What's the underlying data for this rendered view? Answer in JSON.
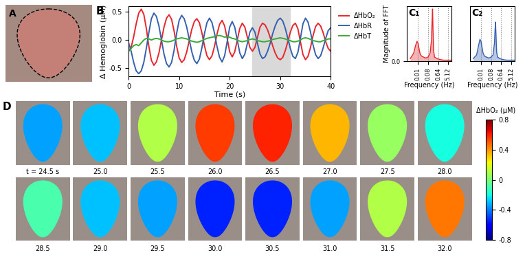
{
  "chart_data": [
    {
      "type": "image",
      "panel": "A"
    },
    {
      "type": "line",
      "panel": "B",
      "x": [
        0,
        0.5,
        1,
        1.5,
        2,
        2.5,
        3,
        3.5,
        4,
        4.5,
        5,
        5.5,
        6,
        6.5,
        7,
        7.5,
        8,
        8.5,
        9,
        9.5,
        10,
        10.5,
        11,
        11.5,
        12,
        12.5,
        13,
        13.5,
        14,
        14.5,
        15,
        15.5,
        16,
        16.5,
        17,
        17.5,
        18,
        18.5,
        19,
        19.5,
        20,
        20.5,
        21,
        21.5,
        22,
        22.5,
        23,
        23.5,
        24,
        24.5,
        25,
        25.5,
        26,
        26.5,
        27,
        27.5,
        28,
        28.5,
        29,
        29.5,
        30,
        30.5,
        31,
        31.5,
        32,
        32.5,
        33,
        33.5,
        34,
        34.5,
        35,
        35.5,
        36,
        36.5,
        37,
        37.5,
        38,
        38.5,
        39,
        39.5,
        40
      ],
      "xlim": [
        0,
        40
      ],
      "xticks": [
        0,
        10,
        20,
        30,
        40
      ],
      "ylim": [
        -0.65,
        0.6
      ],
      "yticks": [
        -0.5,
        0.0,
        0.5
      ],
      "x_label": "Time (s)",
      "y_label": "Δ Hemoglobin (μM)",
      "legend": "upper left",
      "shaded_range": [
        24.5,
        32
      ],
      "series": [
        {
          "name": "ΔHbO₂",
          "color": "#e8262b",
          "values": [
            -0.2,
            -0.13,
            0.06,
            0.29,
            0.48,
            0.55,
            0.46,
            0.21,
            -0.11,
            -0.36,
            -0.45,
            -0.39,
            -0.23,
            0.0,
            0.23,
            0.39,
            0.45,
            0.37,
            0.16,
            -0.11,
            -0.32,
            -0.4,
            -0.35,
            -0.21,
            -0.01,
            0.19,
            0.33,
            0.38,
            0.31,
            0.13,
            -0.1,
            -0.28,
            -0.35,
            -0.28,
            -0.11,
            0.11,
            0.28,
            0.35,
            0.25,
            0.03,
            -0.21,
            -0.3,
            -0.21,
            0.0,
            0.21,
            0.3,
            0.23,
            0.05,
            -0.13,
            -0.2,
            -0.13,
            0.05,
            0.23,
            0.3,
            0.27,
            0.18,
            0.05,
            -0.1,
            -0.23,
            -0.32,
            -0.35,
            -0.31,
            -0.19,
            -0.03,
            0.14,
            0.26,
            0.3,
            0.2,
            -0.03,
            -0.26,
            -0.35,
            -0.29,
            -0.13,
            0.08,
            0.24,
            0.3,
            0.25,
            0.13,
            -0.03,
            -0.15,
            -0.2
          ]
        },
        {
          "name": "ΔHbR",
          "color": "#3560b0",
          "values": [
            -0.05,
            -0.2,
            -0.4,
            -0.55,
            -0.6,
            -0.55,
            -0.4,
            -0.15,
            0.13,
            0.38,
            0.48,
            0.42,
            0.25,
            0.0,
            -0.25,
            -0.42,
            -0.48,
            -0.4,
            -0.18,
            0.12,
            0.35,
            0.44,
            0.38,
            0.23,
            0.01,
            -0.21,
            -0.36,
            -0.42,
            -0.34,
            -0.14,
            0.11,
            0.31,
            0.39,
            0.31,
            0.12,
            -0.12,
            -0.31,
            -0.39,
            -0.28,
            -0.03,
            0.23,
            0.33,
            0.23,
            0.0,
            -0.23,
            -0.33,
            -0.25,
            -0.06,
            0.14,
            0.22,
            0.14,
            -0.06,
            -0.25,
            -0.33,
            -0.3,
            -0.2,
            -0.06,
            0.11,
            0.25,
            0.35,
            0.39,
            0.34,
            0.21,
            0.03,
            -0.15,
            -0.29,
            -0.33,
            -0.22,
            0.03,
            0.29,
            0.39,
            0.32,
            0.14,
            -0.09,
            -0.26,
            -0.33,
            -0.28,
            -0.14,
            0.03,
            0.17,
            0.22
          ]
        },
        {
          "name": "ΔHbT",
          "color": "#3aaa35",
          "values": [
            -0.2,
            -0.15,
            -0.1,
            -0.08,
            -0.1,
            -0.05,
            0.0,
            0.03,
            0.02,
            0.0,
            0.02,
            0.03,
            0.02,
            0.0,
            -0.02,
            -0.03,
            -0.03,
            -0.02,
            0.0,
            0.02,
            0.03,
            0.04,
            0.03,
            0.02,
            0.0,
            -0.02,
            -0.03,
            -0.04,
            -0.03,
            -0.01,
            0.01,
            0.03,
            0.04,
            0.05,
            0.06,
            0.08,
            0.08,
            0.07,
            0.05,
            0.06,
            0.05,
            0.03,
            0.02,
            0.0,
            -0.02,
            -0.03,
            -0.02,
            -0.01,
            0.01,
            0.02,
            0.01,
            -0.01,
            -0.02,
            -0.03,
            -0.03,
            -0.02,
            -0.01,
            0.01,
            0.02,
            0.03,
            0.04,
            0.03,
            0.02,
            0.0,
            -0.01,
            -0.03,
            -0.03,
            -0.02,
            0.0,
            0.03,
            0.04,
            0.03,
            0.01,
            -0.01,
            -0.02,
            -0.03,
            -0.03,
            -0.01,
            0.0,
            0.02,
            0.02
          ]
        }
      ]
    },
    {
      "type": "line",
      "panel": "C₁",
      "log": "x",
      "grid": true,
      "x": [
        0.002,
        0.004,
        0.006,
        0.008,
        0.01,
        0.012,
        0.015,
        0.02,
        0.03,
        0.05,
        0.08,
        0.12,
        0.16,
        0.18,
        0.2,
        0.22,
        0.25,
        0.3,
        0.5,
        1,
        2,
        5,
        10
      ],
      "values": [
        0.05,
        0.15,
        0.3,
        0.38,
        0.35,
        0.25,
        0.15,
        0.1,
        0.08,
        0.06,
        0.08,
        0.15,
        0.4,
        0.75,
        1.0,
        0.6,
        0.2,
        0.08,
        0.05,
        0.03,
        0.02,
        0.02,
        0.02
      ],
      "color": "#e8262b",
      "xlim": [
        0.001,
        10
      ],
      "xticks": [
        0.01,
        0.08,
        0.64,
        5.12
      ],
      "ylim": [
        0,
        1.05
      ],
      "yticks": [
        0.0
      ],
      "x_label": "Frequency (Hz)",
      "y_label": "Magnitude of FFT"
    },
    {
      "type": "line",
      "panel": "C₂",
      "log": "x",
      "grid": true,
      "x": [
        0.002,
        0.004,
        0.006,
        0.008,
        0.01,
        0.012,
        0.015,
        0.02,
        0.03,
        0.05,
        0.08,
        0.12,
        0.16,
        0.18,
        0.2,
        0.22,
        0.25,
        0.3,
        0.5,
        1,
        2,
        5,
        10
      ],
      "values": [
        0.05,
        0.12,
        0.3,
        0.42,
        0.38,
        0.28,
        0.16,
        0.1,
        0.08,
        0.06,
        0.08,
        0.12,
        0.35,
        0.6,
        0.75,
        0.5,
        0.18,
        0.08,
        0.05,
        0.03,
        0.02,
        0.02,
        0.02
      ],
      "color": "#3560b0",
      "xlim": [
        0.001,
        10
      ],
      "xticks": [
        0.01,
        0.08,
        0.64,
        5.12
      ],
      "ylim": [
        0,
        1.05
      ],
      "yticks": [],
      "x_label": "Frequency (Hz)"
    },
    {
      "type": "image_grid",
      "panel": "D",
      "frame_labels": [
        "t = 24.5 s",
        "25.0",
        "25.5",
        "26.0",
        "26.5",
        "27.0",
        "27.5",
        "28.0",
        "28.5",
        "29.0",
        "29.5",
        "30.0",
        "30.5",
        "31.0",
        "31.5",
        "32.0"
      ],
      "values": [
        -0.35,
        -0.3,
        0.1,
        0.55,
        0.6,
        0.35,
        0.05,
        -0.2,
        -0.1,
        -0.3,
        -0.35,
        -0.55,
        -0.55,
        -0.35,
        0.1,
        0.45
      ],
      "colorbar": {
        "range": [
          -0.8,
          0.8
        ],
        "ticks": [
          0.8,
          0.4,
          0,
          -0.4,
          -0.8
        ],
        "label": "ΔHbO₂ (μM)"
      }
    }
  ]
}
